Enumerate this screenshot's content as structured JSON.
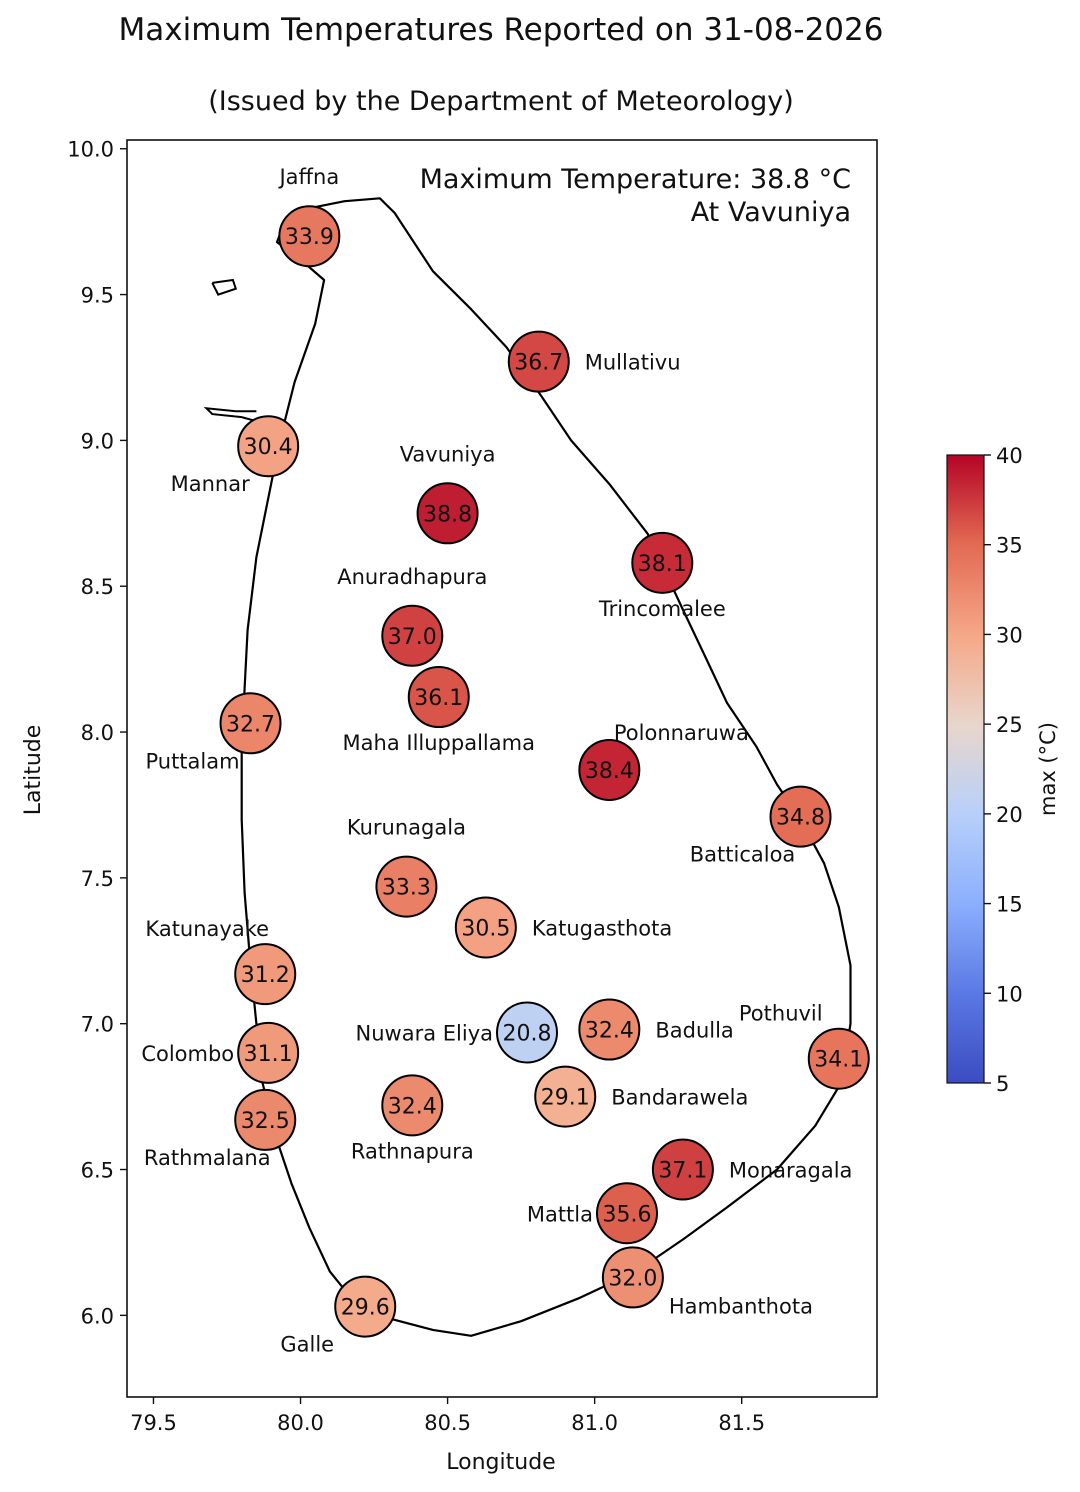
{
  "title": "Maximum Temperatures Reported on 31-08-2026",
  "subtitle": "(Issued by the Department of Meteorology)",
  "annotation": {
    "line1": "Maximum Temperature: 38.8 °C",
    "line2": "At Vavuniya"
  },
  "axes": {
    "xlabel": "Longitude",
    "ylabel": "Latitude",
    "xticks": [
      79.5,
      80.0,
      80.5,
      81.0,
      81.5
    ],
    "xtick_labels": [
      "79.5",
      "80.0",
      "80.5",
      "81.0",
      "81.5"
    ],
    "yticks": [
      6.0,
      6.5,
      7.0,
      7.5,
      8.0,
      8.5,
      9.0,
      9.5,
      10.0
    ],
    "ytick_labels": [
      "6.0",
      "6.5",
      "7.0",
      "7.5",
      "8.0",
      "8.5",
      "9.0",
      "9.5",
      "10.0"
    ],
    "xlim": [
      79.41,
      81.96
    ],
    "ylim": [
      5.72,
      10.03
    ]
  },
  "colorbar": {
    "label": "max (°C)",
    "range": [
      5,
      40
    ],
    "ticks": [
      5,
      10,
      15,
      20,
      25,
      30,
      35,
      40
    ],
    "tick_labels": [
      "5",
      "10",
      "15",
      "20",
      "25",
      "30",
      "35",
      "40"
    ],
    "colormap": "coolwarm"
  },
  "chart_data": {
    "type": "scatter",
    "x_label": "Longitude",
    "y_label": "Latitude",
    "color_by": "max (°C)",
    "stations": [
      {
        "name": "Jaffna",
        "lon": 80.03,
        "lat": 9.7,
        "max": 33.9,
        "value_label": "33.9",
        "label_pos": "above"
      },
      {
        "name": "Mullativu",
        "lon": 80.81,
        "lat": 9.27,
        "max": 36.7,
        "value_label": "36.7",
        "label_pos": "right"
      },
      {
        "name": "Mannar",
        "lon": 79.89,
        "lat": 8.98,
        "max": 30.4,
        "value_label": "30.4",
        "label_pos": "below-left"
      },
      {
        "name": "Vavuniya",
        "lon": 80.5,
        "lat": 8.75,
        "max": 38.8,
        "value_label": "38.8",
        "label_pos": "above"
      },
      {
        "name": "Trincomalee",
        "lon": 81.23,
        "lat": 8.58,
        "max": 38.1,
        "value_label": "38.1",
        "label_pos": "below"
      },
      {
        "name": "Anuradhapura",
        "lon": 80.38,
        "lat": 8.33,
        "max": 37.0,
        "value_label": "37.0",
        "label_pos": "above"
      },
      {
        "name": "Maha Illuppallama",
        "lon": 80.47,
        "lat": 8.12,
        "max": 36.1,
        "value_label": "36.1",
        "label_pos": "below"
      },
      {
        "name": "Puttalam",
        "lon": 79.83,
        "lat": 8.03,
        "max": 32.7,
        "value_label": "32.7",
        "label_pos": "below-left"
      },
      {
        "name": "Polonnaruwa",
        "lon": 81.05,
        "lat": 7.87,
        "max": 38.4,
        "value_label": "38.4",
        "label_pos": "above-right"
      },
      {
        "name": "Batticaloa",
        "lon": 81.7,
        "lat": 7.71,
        "max": 34.8,
        "value_label": "34.8",
        "label_pos": "below-left"
      },
      {
        "name": "Kurunagala",
        "lon": 80.36,
        "lat": 7.47,
        "max": 33.3,
        "value_label": "33.3",
        "label_pos": "above"
      },
      {
        "name": "Katugasthota",
        "lon": 80.63,
        "lat": 7.33,
        "max": 30.5,
        "value_label": "30.5",
        "label_pos": "right"
      },
      {
        "name": "Katunayake",
        "lon": 79.88,
        "lat": 7.17,
        "max": 31.2,
        "value_label": "31.2",
        "label_pos": "above-left"
      },
      {
        "name": "Nuwara Eliya",
        "lon": 80.77,
        "lat": 6.97,
        "max": 20.8,
        "value_label": "20.8",
        "label_pos": "left"
      },
      {
        "name": "Badulla",
        "lon": 81.05,
        "lat": 6.98,
        "max": 32.4,
        "value_label": "32.4",
        "label_pos": "right"
      },
      {
        "name": "Pothuvil",
        "lon": 81.83,
        "lat": 6.88,
        "max": 34.1,
        "value_label": "34.1",
        "label_pos": "above-left"
      },
      {
        "name": "Colombo",
        "lon": 79.89,
        "lat": 6.9,
        "max": 31.1,
        "value_label": "31.1",
        "label_pos": "left"
      },
      {
        "name": "Bandarawela",
        "lon": 80.9,
        "lat": 6.75,
        "max": 29.1,
        "value_label": "29.1",
        "label_pos": "right"
      },
      {
        "name": "Rathnapura",
        "lon": 80.38,
        "lat": 6.72,
        "max": 32.4,
        "value_label": "32.4",
        "label_pos": "below"
      },
      {
        "name": "Rathmalana",
        "lon": 79.88,
        "lat": 6.67,
        "max": 32.5,
        "value_label": "32.5",
        "label_pos": "below-left"
      },
      {
        "name": "Monaragala",
        "lon": 81.3,
        "lat": 6.5,
        "max": 37.1,
        "value_label": "37.1",
        "label_pos": "right"
      },
      {
        "name": "Mattla",
        "lon": 81.11,
        "lat": 6.35,
        "max": 35.6,
        "value_label": "35.6",
        "label_pos": "left"
      },
      {
        "name": "Hambanthota",
        "lon": 81.13,
        "lat": 6.13,
        "max": 32.0,
        "value_label": "32.0",
        "label_pos": "below-right"
      },
      {
        "name": "Galle",
        "lon": 80.22,
        "lat": 6.03,
        "max": 29.6,
        "value_label": "29.6",
        "label_pos": "below-left"
      }
    ]
  },
  "coastline": [
    [
      80.27,
      9.83
    ],
    [
      80.32,
      9.78
    ],
    [
      80.45,
      9.58
    ],
    [
      80.58,
      9.45
    ],
    [
      80.7,
      9.32
    ],
    [
      80.82,
      9.15
    ],
    [
      80.92,
      9.0
    ],
    [
      81.05,
      8.85
    ],
    [
      81.18,
      8.68
    ],
    [
      81.24,
      8.55
    ],
    [
      81.3,
      8.42
    ],
    [
      81.38,
      8.25
    ],
    [
      81.45,
      8.1
    ],
    [
      81.55,
      7.95
    ],
    [
      81.62,
      7.82
    ],
    [
      81.7,
      7.7
    ],
    [
      81.78,
      7.55
    ],
    [
      81.83,
      7.4
    ],
    [
      81.87,
      7.2
    ],
    [
      81.87,
      7.0
    ],
    [
      81.84,
      6.8
    ],
    [
      81.75,
      6.65
    ],
    [
      81.62,
      6.5
    ],
    [
      81.45,
      6.37
    ],
    [
      81.3,
      6.26
    ],
    [
      81.14,
      6.15
    ],
    [
      80.95,
      6.06
    ],
    [
      80.75,
      5.98
    ],
    [
      80.58,
      5.93
    ],
    [
      80.45,
      5.95
    ],
    [
      80.3,
      5.99
    ],
    [
      80.18,
      6.05
    ],
    [
      80.1,
      6.15
    ],
    [
      80.03,
      6.3
    ],
    [
      79.97,
      6.45
    ],
    [
      79.92,
      6.6
    ],
    [
      79.87,
      6.8
    ],
    [
      79.85,
      7.0
    ],
    [
      79.83,
      7.2
    ],
    [
      79.81,
      7.45
    ],
    [
      79.8,
      7.7
    ],
    [
      79.8,
      7.95
    ],
    [
      79.81,
      8.15
    ],
    [
      79.82,
      8.35
    ],
    [
      79.85,
      8.6
    ],
    [
      79.9,
      8.85
    ],
    [
      79.93,
      9.0
    ],
    [
      79.98,
      9.2
    ],
    [
      80.05,
      9.4
    ],
    [
      80.08,
      9.55
    ],
    [
      80.0,
      9.62
    ],
    [
      79.92,
      9.68
    ],
    [
      79.95,
      9.76
    ],
    [
      80.05,
      9.8
    ],
    [
      80.15,
      9.82
    ],
    [
      80.27,
      9.83
    ]
  ],
  "islands": [
    [
      [
        79.7,
        9.54
      ],
      [
        79.77,
        9.55
      ],
      [
        79.78,
        9.52
      ],
      [
        79.72,
        9.5
      ],
      [
        79.7,
        9.54
      ]
    ],
    [
      [
        79.85,
        9.1
      ],
      [
        79.78,
        9.1
      ],
      [
        79.68,
        9.11
      ],
      [
        79.7,
        9.09
      ],
      [
        79.8,
        9.08
      ],
      [
        79.87,
        9.06
      ]
    ]
  ]
}
